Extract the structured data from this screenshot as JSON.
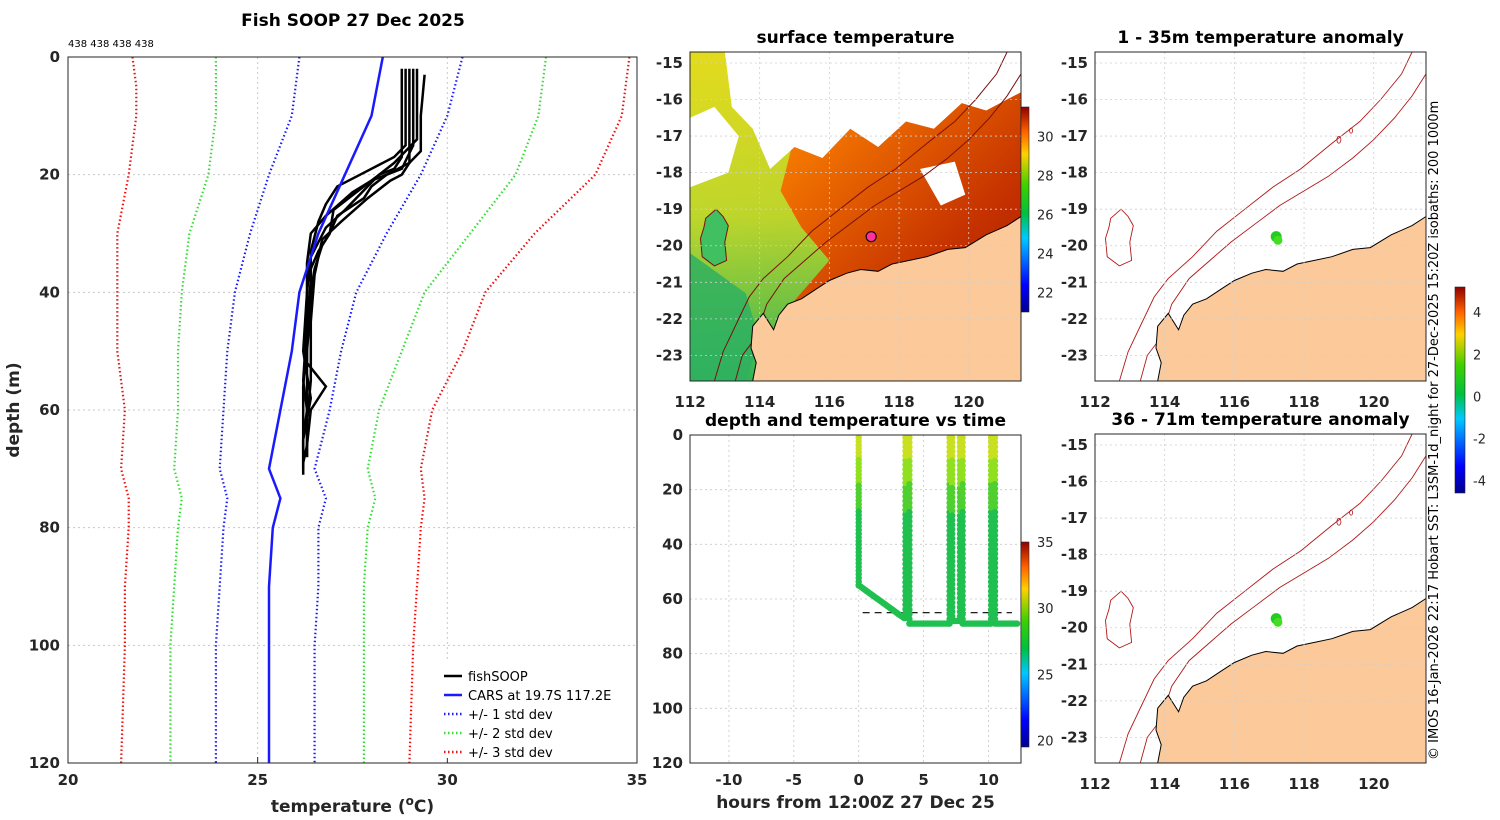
{
  "figure_title": "Fish SOOP 27 Dec 2025",
  "side_text": "© IMOS 16-Jan-2026 22:17 Hobart SST: L3SM-1d_night for 27-Dec-2025 15:20Z isobaths: 200  1000m",
  "colors": {
    "fish": "#000000",
    "cars": "#1a1aff",
    "sd1": "#1a1aff",
    "sd2": "#33dd33",
    "sd3": "#ee1111",
    "land": "#fbc99a",
    "grid": "#c8c8c8"
  },
  "chart_data": [
    {
      "id": "profile",
      "type": "line",
      "title": "Fish SOOP 27 Dec 2025",
      "top_annotation": "438 438 438 438",
      "xlabel": "temperature (",
      "xlabel_sup": "o",
      "xlabel_unit": "C)",
      "ylabel": "depth (m)",
      "xlim": [
        20,
        35
      ],
      "ylim": [
        0,
        120
      ],
      "y_reversed": true,
      "xticks": [
        "20",
        "25",
        "30",
        "35"
      ],
      "yticks": [
        "0",
        "20",
        "40",
        "60",
        "80",
        "100",
        "120"
      ],
      "legend": [
        "fishSOOP",
        "CARS at 19.7S 117.2E",
        "+/- 1 std dev",
        "+/- 2 std dev",
        "+/- 3 std dev"
      ],
      "cars": {
        "depth": [
          0,
          10,
          20,
          30,
          40,
          50,
          60,
          70,
          75,
          80,
          90,
          100,
          120
        ],
        "temp": [
          28.3,
          28.0,
          27.3,
          26.6,
          26.1,
          25.9,
          25.6,
          25.3,
          25.6,
          25.4,
          25.3,
          25.3,
          25.3
        ]
      },
      "sd_minus3": {
        "depth": [
          0,
          5,
          10,
          20,
          30,
          40,
          50,
          60,
          70,
          75,
          80,
          90,
          100,
          120
        ],
        "temp": [
          21.7,
          21.8,
          21.8,
          21.6,
          21.3,
          21.3,
          21.3,
          21.5,
          21.4,
          21.6,
          21.6,
          21.5,
          21.5,
          21.4
        ]
      },
      "sd_minus2": {
        "depth": [
          0,
          5,
          10,
          20,
          30,
          40,
          50,
          60,
          70,
          75,
          80,
          90,
          100,
          120
        ],
        "temp": [
          23.9,
          23.9,
          23.9,
          23.7,
          23.2,
          23.0,
          22.9,
          22.9,
          22.8,
          23.0,
          22.9,
          22.8,
          22.7,
          22.7
        ]
      },
      "sd_minus1": {
        "depth": [
          0,
          5,
          10,
          20,
          30,
          40,
          50,
          60,
          70,
          75,
          80,
          90,
          100,
          120
        ],
        "temp": [
          26.1,
          26.0,
          25.9,
          25.3,
          24.8,
          24.4,
          24.2,
          24.1,
          24.0,
          24.2,
          24.1,
          24.0,
          23.9,
          23.9
        ]
      },
      "sd_plus1": {
        "depth": [
          0,
          5,
          10,
          20,
          30,
          40,
          50,
          60,
          70,
          75,
          80,
          90,
          100,
          120
        ],
        "temp": [
          30.4,
          30.2,
          30.0,
          29.3,
          28.4,
          27.6,
          27.2,
          26.9,
          26.5,
          26.8,
          26.6,
          26.6,
          26.5,
          26.5
        ]
      },
      "sd_plus2": {
        "depth": [
          0,
          5,
          10,
          20,
          30,
          40,
          50,
          60,
          70,
          75,
          80,
          90,
          100,
          120
        ],
        "temp": [
          32.6,
          32.5,
          32.4,
          31.8,
          30.6,
          29.4,
          28.8,
          28.2,
          27.9,
          28.1,
          27.9,
          27.8,
          27.8,
          27.8
        ]
      },
      "sd_plus3": {
        "depth": [
          0,
          5,
          10,
          20,
          30,
          40,
          50,
          60,
          70,
          75,
          80,
          90,
          100,
          120
        ],
        "temp": [
          34.8,
          34.7,
          34.6,
          33.9,
          32.3,
          31.0,
          30.4,
          29.6,
          29.3,
          29.4,
          29.3,
          29.2,
          29.1,
          29.0
        ]
      },
      "fish_profiles": [
        {
          "depth": [
            2,
            10,
            15,
            17,
            20,
            22,
            25,
            28,
            33,
            38,
            45,
            55,
            60,
            65,
            70,
            71
          ],
          "temp": [
            28.9,
            28.9,
            28.9,
            28.6,
            27.7,
            27.1,
            26.8,
            26.6,
            26.4,
            26.4,
            26.3,
            26.2,
            26.3,
            26.2,
            26.2,
            26.2
          ]
        },
        {
          "depth": [
            2,
            10,
            15,
            19,
            21,
            23,
            27,
            30,
            35,
            40,
            50,
            58,
            65,
            70
          ],
          "temp": [
            29.1,
            29.1,
            29.1,
            28.8,
            28.0,
            27.5,
            26.8,
            26.4,
            26.3,
            26.3,
            26.2,
            26.4,
            26.2,
            26.2
          ]
        },
        {
          "depth": [
            2,
            10,
            14,
            18,
            20,
            22,
            26,
            29,
            34,
            40,
            52,
            56,
            60,
            66,
            69
          ],
          "temp": [
            29.2,
            29.2,
            29.2,
            28.6,
            28.2,
            27.9,
            27.3,
            26.8,
            26.4,
            26.3,
            26.3,
            26.8,
            26.4,
            26.3,
            26.2
          ]
        },
        {
          "depth": [
            3,
            10,
            16,
            18,
            20,
            21,
            24,
            28,
            31,
            37,
            45,
            55,
            62,
            68
          ],
          "temp": [
            29.4,
            29.3,
            29.3,
            29.0,
            28.8,
            28.5,
            27.9,
            27.2,
            26.7,
            26.5,
            26.4,
            26.4,
            26.3,
            26.3
          ]
        },
        {
          "depth": [
            2,
            12,
            18,
            19,
            20,
            22,
            24,
            27,
            30,
            33,
            36,
            42,
            50,
            60,
            68
          ],
          "temp": [
            29.0,
            29.0,
            29.0,
            28.7,
            28.4,
            28.0,
            27.8,
            27.1,
            26.9,
            26.6,
            26.4,
            26.4,
            26.3,
            26.3,
            26.3
          ]
        },
        {
          "depth": [
            2,
            12,
            17,
            19,
            20,
            23,
            26,
            30,
            32,
            36,
            40,
            48,
            56,
            62,
            67
          ],
          "temp": [
            28.8,
            28.8,
            28.8,
            28.6,
            28.2,
            27.6,
            27.0,
            26.9,
            26.7,
            26.5,
            26.4,
            26.3,
            26.2,
            26.2,
            26.2
          ]
        }
      ]
    },
    {
      "id": "sst",
      "type": "heatmap",
      "title": "surface temperature",
      "xlim": [
        112,
        121.5
      ],
      "ylim": [
        -23.7,
        -14.7
      ],
      "xticks": [
        "112",
        "114",
        "116",
        "118",
        "120"
      ],
      "yticks": [
        "-15",
        "-16",
        "-17",
        "-18",
        "-19",
        "-20",
        "-21",
        "-22",
        "-23"
      ],
      "colorbar_ticks": [
        "22",
        "24",
        "26",
        "28",
        "30"
      ],
      "colorbar_range": [
        21,
        31.5
      ],
      "position": {
        "lon": 117.2,
        "lat": -19.75
      }
    },
    {
      "id": "timeseries",
      "type": "scatter",
      "title": "depth and temperature vs time",
      "xlabel": "hours from 12:00Z 27 Dec 25",
      "xlim": [
        -13,
        12.5
      ],
      "ylim": [
        0,
        120
      ],
      "y_reversed": true,
      "xticks": [
        "-10",
        "-5",
        "0",
        "5",
        "10"
      ],
      "yticks": [
        "0",
        "20",
        "40",
        "60",
        "80",
        "100",
        "120"
      ],
      "colorbar_ticks": [
        "20",
        "25",
        "30",
        "35"
      ],
      "colorbar_range": [
        19.5,
        35
      ],
      "bottom_depth": 65
    },
    {
      "id": "anom1",
      "type": "map",
      "title": "1 - 35m temperature anomaly",
      "xlim": [
        112,
        121.5
      ],
      "ylim": [
        -23.7,
        -14.7
      ],
      "xticks": [
        "112",
        "114",
        "116",
        "118",
        "120"
      ],
      "yticks": [
        "-15",
        "-16",
        "-17",
        "-18",
        "-19",
        "-20",
        "-21",
        "-22",
        "-23"
      ]
    },
    {
      "id": "anom2",
      "type": "map",
      "title": "36 - 71m temperature anomaly",
      "xlim": [
        112,
        121.5
      ],
      "ylim": [
        -23.7,
        -14.7
      ],
      "xticks": [
        "112",
        "114",
        "116",
        "118",
        "120"
      ],
      "yticks": [
        "-15",
        "-16",
        "-17",
        "-18",
        "-19",
        "-20",
        "-21",
        "-22",
        "-23"
      ]
    },
    {
      "id": "anomaly_colorbar",
      "ticks": [
        "4",
        "2",
        "0",
        "-2",
        "-4"
      ],
      "range": [
        -4.6,
        5.2
      ]
    }
  ]
}
